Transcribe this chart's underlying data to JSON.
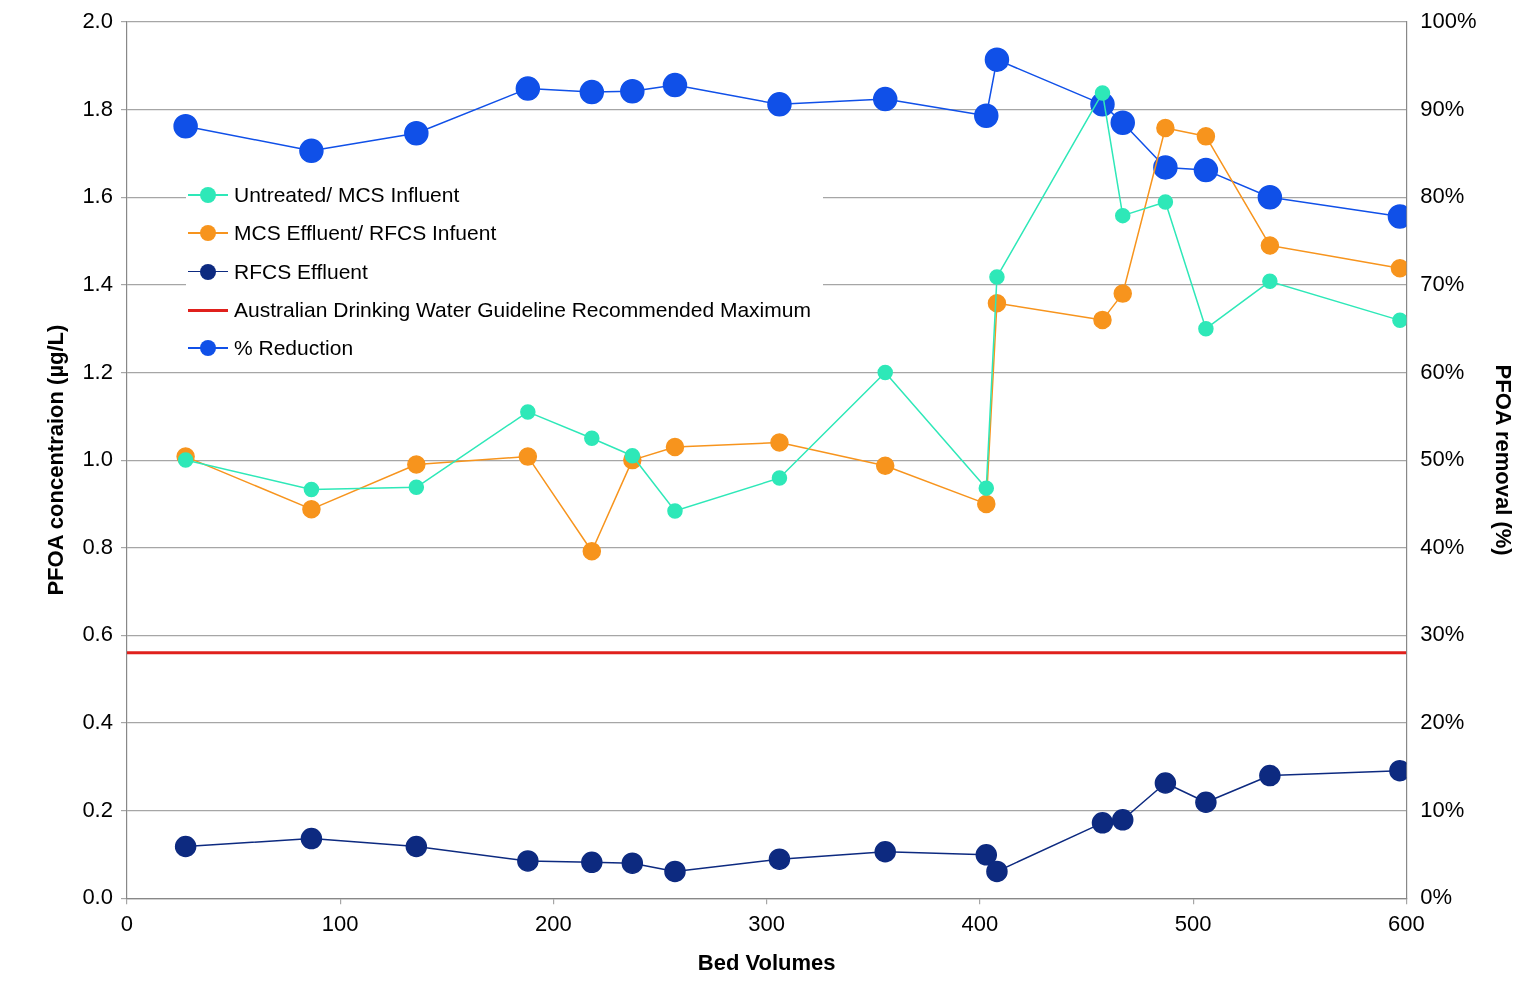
{
  "chart_data": {
    "type": "line",
    "xlabel": "Bed Volumes",
    "ylabel": "PFOA concentraion (µg/L)",
    "y2label": "PFOA removal (%)",
    "x": [
      27.5,
      86.5,
      135.7,
      188,
      218,
      237,
      257,
      306,
      355.6,
      403,
      408,
      457.5,
      467,
      487,
      506,
      536,
      597
    ],
    "series": [
      {
        "name": "Untreated/ MCS Influent",
        "color": "#2ee8b8",
        "values": [
          1.0,
          0.933,
          0.938,
          1.11,
          1.05,
          1.01,
          0.884,
          0.959,
          1.2,
          0.936,
          1.418,
          1.838,
          1.558,
          1.589,
          1.3,
          1.408,
          1.319
        ]
      },
      {
        "name": "MCS Effluent/ RFCS Infuent",
        "color": "#f7941d",
        "values": [
          1.008,
          0.888,
          0.99,
          1.008,
          0.792,
          1.0,
          1.03,
          1.04,
          0.987,
          0.9,
          1.358,
          1.32,
          1.38,
          1.758,
          1.739,
          1.49,
          1.438
        ]
      },
      {
        "name": "RFCS Effluent",
        "color": "#0d2a80",
        "values": [
          0.118,
          0.136,
          0.118,
          0.085,
          0.082,
          0.08,
          0.061,
          0.089,
          0.106,
          0.099,
          0.061,
          0.172,
          0.179,
          0.263,
          0.219,
          0.28,
          0.291
        ]
      },
      {
        "name": "% Reduction",
        "color": "#1050e8",
        "axis": "y2",
        "values": [
          88.1,
          85.3,
          87.3,
          92.4,
          92.0,
          92.1,
          92.8,
          90.6,
          91.2,
          89.3,
          95.7,
          90.6,
          88.5,
          83.4,
          83.1,
          80.0,
          77.8
        ]
      }
    ],
    "ref_lines": [
      {
        "axis": "y",
        "value": 0.56,
        "label": "Australian Drinking Water Guideline Recommended Maximum",
        "color": "#e0201c"
      }
    ],
    "xlim": [
      0,
      600
    ],
    "xticks": [
      0,
      100,
      200,
      300,
      400,
      500,
      600
    ],
    "ylim": [
      0,
      2
    ],
    "yticks": [
      {
        "value": 0,
        "label": "0.0"
      },
      {
        "value": 0.2,
        "label": "0.2"
      },
      {
        "value": 0.4,
        "label": "0.4"
      },
      {
        "value": 0.6,
        "label": "0.6"
      },
      {
        "value": 0.8,
        "label": "0.8"
      },
      {
        "value": 1,
        "label": "1.0"
      },
      {
        "value": 1.2,
        "label": "1.2"
      },
      {
        "value": 1.4,
        "label": "1.4"
      },
      {
        "value": 1.6,
        "label": "1.6"
      },
      {
        "value": 1.8,
        "label": "1.8"
      },
      {
        "value": 2,
        "label": "2.0"
      }
    ],
    "y2lim": [
      0,
      100
    ],
    "y2ticks": [
      {
        "value": 0,
        "label": "0%"
      },
      {
        "value": 10,
        "label": "10%"
      },
      {
        "value": 20,
        "label": "20%"
      },
      {
        "value": 30,
        "label": "30%"
      },
      {
        "value": 40,
        "label": "40%"
      },
      {
        "value": 50,
        "label": "50%"
      },
      {
        "value": 60,
        "label": "60%"
      },
      {
        "value": 70,
        "label": "70%"
      },
      {
        "value": 80,
        "label": "80%"
      },
      {
        "value": 90,
        "label": "90%"
      },
      {
        "value": 100,
        "label": "100%"
      }
    ],
    "grid": "y",
    "legend": "top left",
    "marker": "circle",
    "line_style": "solid"
  }
}
